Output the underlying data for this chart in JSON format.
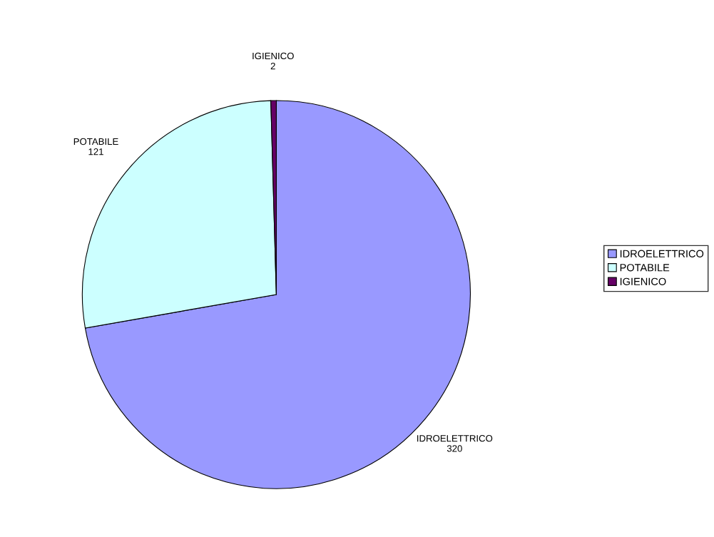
{
  "chart_data": {
    "type": "pie",
    "categories": [
      "IDROELETTRICO",
      "POTABILE",
      "IGIENICO"
    ],
    "values": [
      320,
      121,
      2
    ],
    "colors": [
      "#9999ff",
      "#ccffff",
      "#660066"
    ],
    "data_labels": true,
    "legend": "right"
  }
}
